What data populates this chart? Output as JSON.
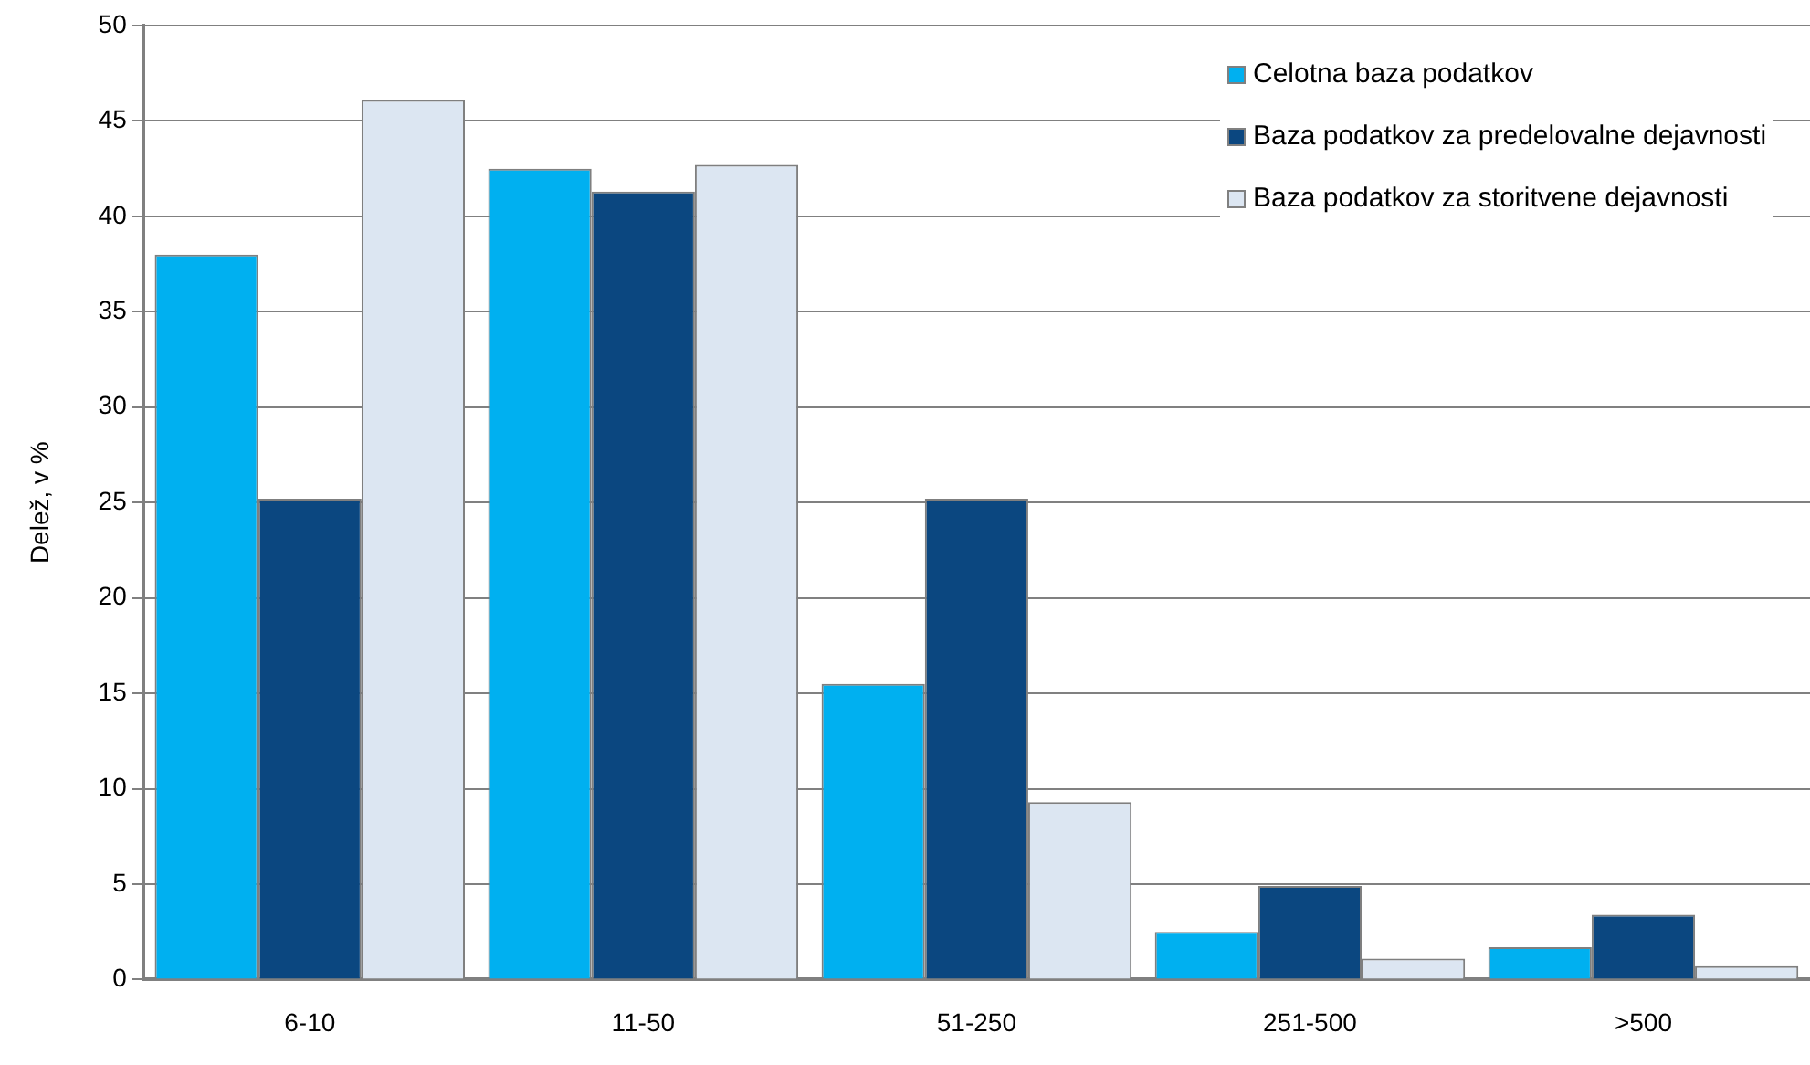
{
  "chart_data": {
    "type": "bar",
    "ylabel": "Delež, v %",
    "categories": [
      "6-10",
      "11-50",
      "51-250",
      "251-500",
      ">500"
    ],
    "series": [
      {
        "name": "Celotna baza podatkov",
        "color": "#00b0f0",
        "values": [
          38,
          42.5,
          15.5,
          2.5,
          1.7
        ]
      },
      {
        "name": "Baza podatkov za predelovalne dejavnosti",
        "color": "#0b4780",
        "values": [
          25.2,
          41.3,
          25.2,
          4.9,
          3.4
        ]
      },
      {
        "name": "Baza podatkov za storitvene dejavnosti",
        "color": "#dce6f2",
        "values": [
          46.1,
          42.7,
          9.3,
          1.1,
          0.7
        ]
      }
    ],
    "ylim": [
      0,
      50
    ],
    "yticks": [
      0,
      5,
      10,
      15,
      20,
      25,
      30,
      35,
      40,
      45,
      50
    ],
    "grid": "y",
    "legend": "top right"
  }
}
